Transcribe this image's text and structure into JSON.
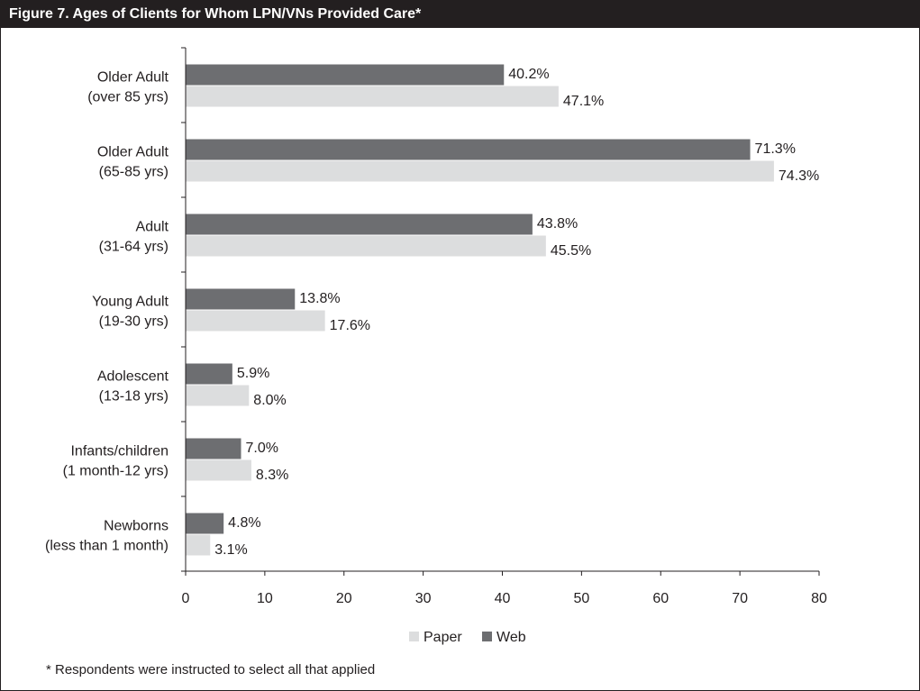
{
  "title": "Figure 7. Ages of Clients for Whom LPN/VNs Provided Care*",
  "footnote": "* Respondents were instructed to select all that applied",
  "colors": {
    "title_bg": "#231f20",
    "web": "#6d6e71",
    "paper": "#dcddde",
    "text": "#231f20"
  },
  "chart_data": {
    "type": "bar",
    "orientation": "horizontal",
    "categories": [
      [
        "Older Adult",
        "(over 85 yrs)"
      ],
      [
        "Older Adult",
        "(65-85 yrs)"
      ],
      [
        "Adult",
        "(31-64 yrs)"
      ],
      [
        "Young Adult",
        "(19-30 yrs)"
      ],
      [
        "Adolescent",
        "(13-18 yrs)"
      ],
      [
        "Infants/children",
        "(1 month-12 yrs)"
      ],
      [
        "Newborns",
        "(less than 1 month)"
      ]
    ],
    "series": [
      {
        "name": "Web",
        "values": [
          40.2,
          71.3,
          43.8,
          13.8,
          5.9,
          7.0,
          4.8
        ],
        "labels": [
          "40.2%",
          "71.3%",
          "43.8%",
          "13.8%",
          "5.9%",
          "7.0%",
          "4.8%"
        ]
      },
      {
        "name": "Paper",
        "values": [
          47.1,
          74.3,
          45.5,
          17.6,
          8.0,
          8.3,
          3.1
        ],
        "labels": [
          "47.1%",
          "74.3%",
          "45.5%",
          "17.6%",
          "8.0%",
          "8.3%",
          "3.1%"
        ]
      }
    ],
    "xlim": [
      0,
      80
    ],
    "xticks": [
      0,
      10,
      20,
      30,
      40,
      50,
      60,
      70,
      80
    ],
    "xlabel": "",
    "ylabel": "",
    "grid": false,
    "legend": {
      "position": "bottom",
      "order": [
        "Paper",
        "Web"
      ]
    }
  }
}
